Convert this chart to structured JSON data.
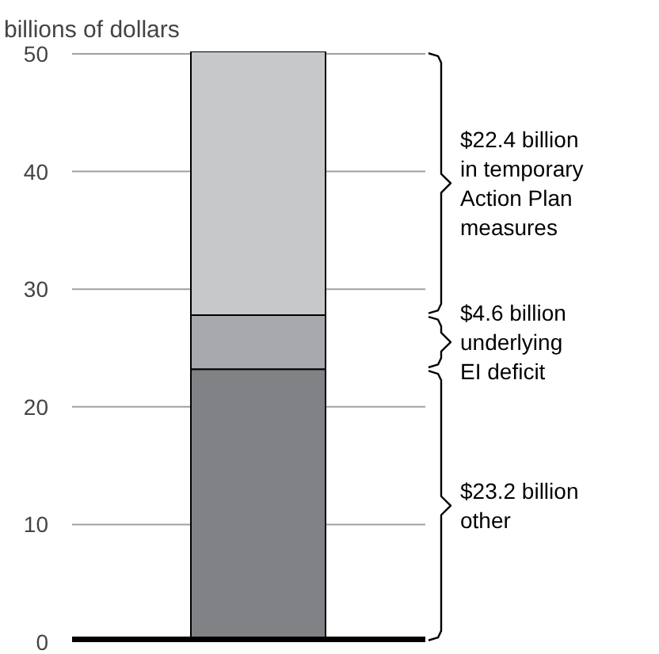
{
  "chart_data": {
    "type": "bar",
    "stacked": true,
    "ylabel": "billions of dollars",
    "categories": [
      null
    ],
    "series": [
      {
        "name": "$23.2 billion\nother",
        "color": "#808285",
        "values": [
          23.2
        ]
      },
      {
        "name": "$4.6 billion\nunderlying\nEI deficit",
        "color": "#a7a9ac",
        "values": [
          4.6
        ]
      },
      {
        "name": "$22.4 billion\nin temporary\nAction Plan\nmeasures",
        "color": "#c7c8ca",
        "values": [
          22.4
        ]
      }
    ],
    "ylim": [
      0,
      50.2
    ],
    "yticks": [
      0,
      10,
      20,
      30,
      40,
      50
    ],
    "grid": "y",
    "legend": "right"
  }
}
